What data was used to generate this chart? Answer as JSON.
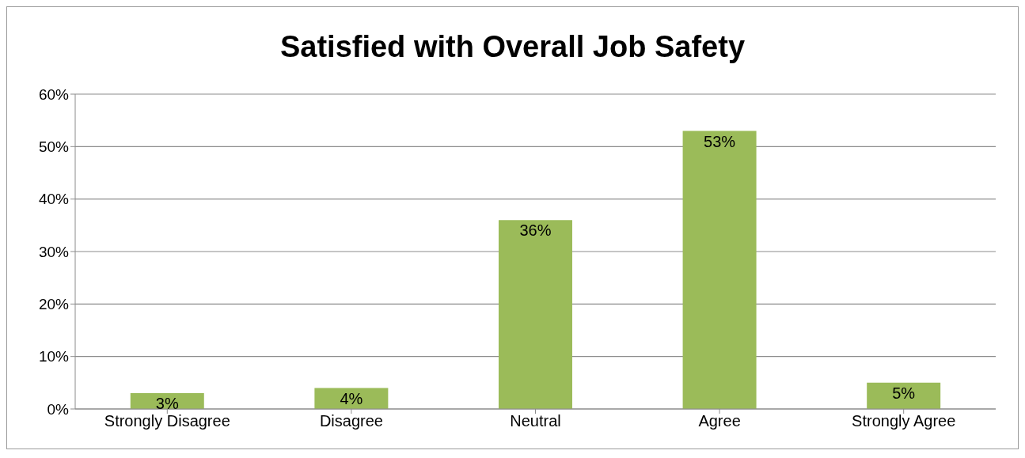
{
  "chart_data": {
    "type": "bar",
    "title": "Satisfied with Overall Job Safety",
    "categories": [
      "Strongly Disagree",
      "Disagree",
      "Neutral",
      "Agree",
      "Strongly Agree"
    ],
    "values": [
      3,
      4,
      36,
      53,
      5
    ],
    "color": "#9bbb59",
    "ylim": [
      0,
      60
    ],
    "yticks": [
      {
        "value": 0,
        "label": "0%"
      },
      {
        "value": 10,
        "label": "10%"
      },
      {
        "value": 20,
        "label": "20%"
      },
      {
        "value": 30,
        "label": "30%"
      },
      {
        "value": 40,
        "label": "40%"
      },
      {
        "value": 50,
        "label": "50%"
      },
      {
        "value": 60,
        "label": "60%"
      }
    ],
    "grid": "y",
    "value_labels": [
      "3%",
      "4%",
      "36%",
      "53%",
      "5%"
    ]
  }
}
